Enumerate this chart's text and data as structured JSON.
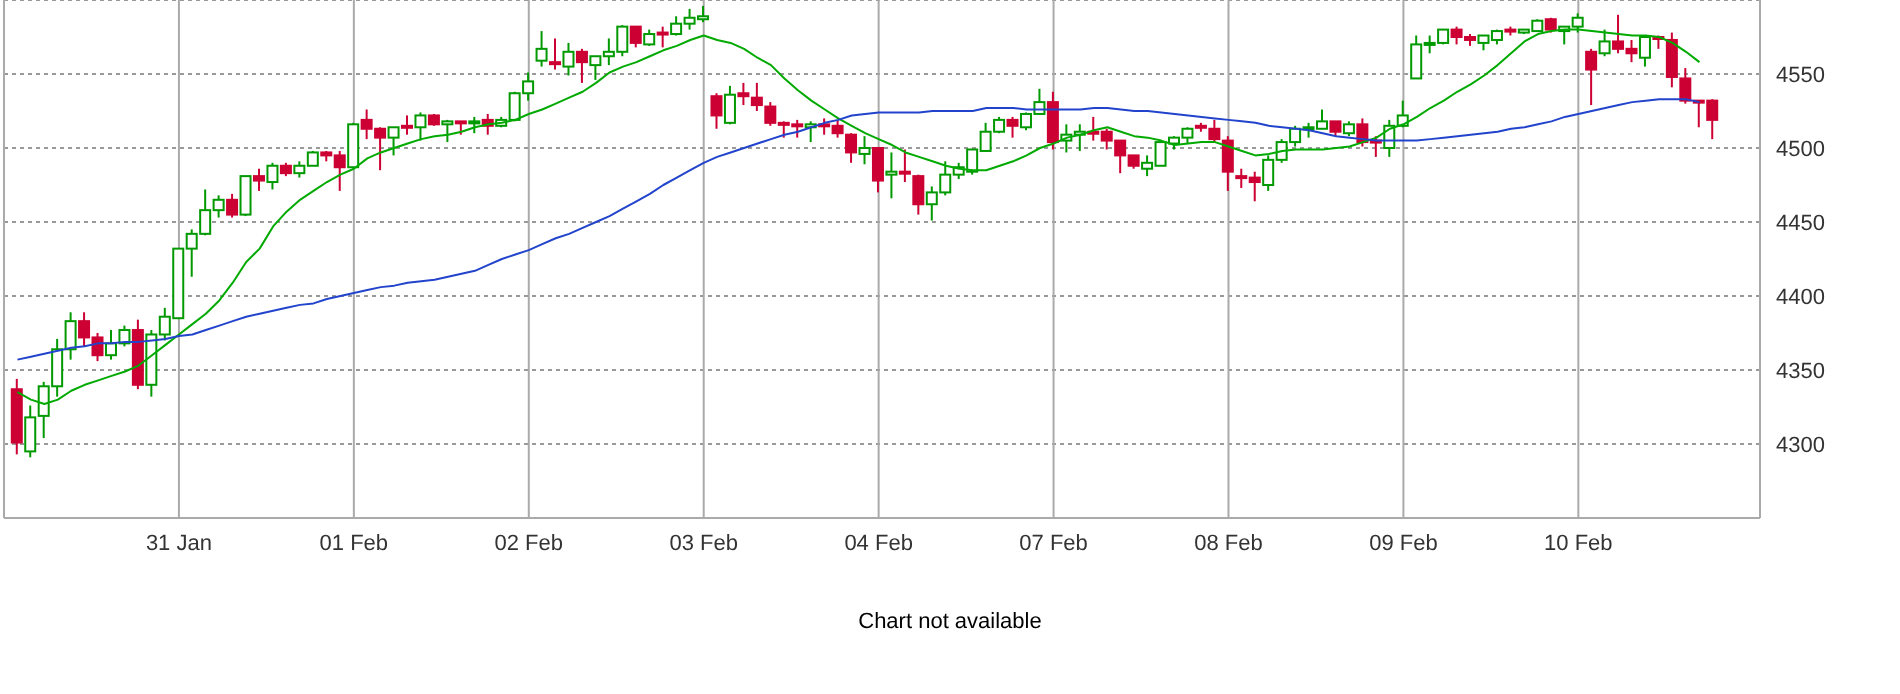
{
  "chart_data": {
    "type": "candlestick",
    "annotations": [
      "Chart not available"
    ],
    "categories": [
      null,
      null,
      null,
      null,
      null,
      null,
      null,
      null,
      null,
      null,
      null,
      null,
      "31 Jan",
      null,
      null,
      null,
      null,
      null,
      null,
      null,
      null,
      null,
      null,
      null,
      null,
      "01 Feb",
      null,
      null,
      null,
      null,
      null,
      null,
      null,
      null,
      null,
      null,
      null,
      null,
      "02 Feb",
      null,
      null,
      null,
      null,
      null,
      null,
      null,
      null,
      null,
      null,
      null,
      null,
      "03 Feb",
      null,
      null,
      null,
      null,
      null,
      null,
      null,
      null,
      null,
      null,
      null,
      null,
      "04 Feb",
      null,
      null,
      null,
      null,
      null,
      null,
      null,
      null,
      null,
      null,
      null,
      null,
      "07 Feb",
      null,
      null,
      null,
      null,
      null,
      null,
      null,
      null,
      null,
      null,
      null,
      null,
      "08 Feb",
      null,
      null,
      null,
      null,
      null,
      null,
      null,
      null,
      null,
      null,
      null,
      null,
      "09 Feb",
      null,
      null,
      null,
      null,
      null,
      null,
      null,
      null,
      null,
      null,
      null,
      null,
      "10 Feb",
      null,
      null,
      null,
      null,
      null,
      null,
      null,
      null,
      null,
      null
    ],
    "ohlc": [
      [
        4337,
        4344,
        4293,
        4301
      ],
      [
        4295,
        4326,
        4291,
        4318
      ],
      [
        4319,
        4342,
        4304,
        4339
      ],
      [
        4339,
        4371,
        4332,
        4364
      ],
      [
        4364,
        4389,
        4357,
        4383
      ],
      [
        4383,
        4389,
        4366,
        4372
      ],
      [
        4372,
        4375,
        4356,
        4360
      ],
      [
        4360,
        4377,
        4357,
        4368
      ],
      [
        4368,
        4380,
        4366,
        4377
      ],
      [
        4377,
        4384,
        4337,
        4340
      ],
      [
        4340,
        4377,
        4332,
        4374
      ],
      [
        4374,
        4392,
        4370,
        4386
      ],
      [
        4385,
        4432,
        4385,
        4432
      ],
      [
        4432,
        4445,
        4413,
        4442
      ],
      [
        4442,
        4472,
        4441,
        4458
      ],
      [
        4458,
        4468,
        4453,
        4465
      ],
      [
        4465,
        4469,
        4453,
        4455
      ],
      [
        4455,
        4481,
        4454,
        4481
      ],
      [
        4481,
        4486,
        4471,
        4478
      ],
      [
        4477,
        4490,
        4472,
        4488
      ],
      [
        4488,
        4490,
        4481,
        4483
      ],
      [
        4483,
        4491,
        4480,
        4488
      ],
      [
        4488,
        4498,
        4488,
        4497
      ],
      [
        4497,
        4498,
        4491,
        4495
      ],
      [
        4495,
        4498,
        4471,
        4487
      ],
      [
        4487,
        4517,
        4487,
        4516
      ],
      [
        4519,
        4526,
        4506,
        4513
      ],
      [
        4513,
        4514,
        4485,
        4507
      ],
      [
        4507,
        4514,
        4495,
        4514
      ],
      [
        4515,
        4522,
        4509,
        4514
      ],
      [
        4514,
        4524,
        4505,
        4522
      ],
      [
        4522,
        4523,
        4515,
        4516
      ],
      [
        4516,
        4519,
        4504,
        4518
      ],
      [
        4518,
        4518,
        4509,
        4517
      ],
      [
        4517,
        4521,
        4510,
        4518
      ],
      [
        4519,
        4523,
        4509,
        4515
      ],
      [
        4515,
        4521,
        4514,
        4519
      ],
      [
        4519,
        4538,
        4518,
        4537
      ],
      [
        4537,
        4551,
        4532,
        4545
      ],
      [
        4559,
        4579,
        4555,
        4567
      ],
      [
        4558,
        4574,
        4553,
        4557
      ],
      [
        4555,
        4571,
        4549,
        4565
      ],
      [
        4565,
        4567,
        4544,
        4558
      ],
      [
        4556,
        4562,
        4546,
        4562
      ],
      [
        4562,
        4574,
        4556,
        4565
      ],
      [
        4565,
        4583,
        4562,
        4582
      ],
      [
        4582,
        4582,
        4568,
        4571
      ],
      [
        4570,
        4580,
        4569,
        4577
      ],
      [
        4578,
        4582,
        4568,
        4577
      ],
      [
        4577,
        4589,
        4576,
        4584
      ],
      [
        4584,
        4594,
        4580,
        4588
      ],
      [
        4587,
        4596,
        4585,
        4589
      ],
      [
        4535,
        4537,
        4513,
        4522
      ],
      [
        4517,
        4542,
        4516,
        4536
      ],
      [
        4537,
        4544,
        4529,
        4535
      ],
      [
        4534,
        4544,
        4525,
        4529
      ],
      [
        4528,
        4531,
        4515,
        4517
      ],
      [
        4517,
        4518,
        4507,
        4516
      ],
      [
        4516,
        4519,
        4507,
        4515
      ],
      [
        4514,
        4518,
        4504,
        4516
      ],
      [
        4516,
        4520,
        4509,
        4515
      ],
      [
        4515,
        4519,
        4507,
        4510
      ],
      [
        4509,
        4510,
        4490,
        4497
      ],
      [
        4496,
        4508,
        4489,
        4500
      ],
      [
        4500,
        4500,
        4470,
        4478
      ],
      [
        4482,
        4497,
        4466,
        4484
      ],
      [
        4484,
        4499,
        4477,
        4483
      ],
      [
        4481,
        4482,
        4455,
        4462
      ],
      [
        4462,
        4474,
        4451,
        4470
      ],
      [
        4470,
        4491,
        4468,
        4482
      ],
      [
        4482,
        4490,
        4479,
        4487
      ],
      [
        4484,
        4499,
        4482,
        4499
      ],
      [
        4498,
        4517,
        4498,
        4511
      ],
      [
        4511,
        4521,
        4510,
        4519
      ],
      [
        4519,
        4521,
        4507,
        4515
      ],
      [
        4514,
        4524,
        4512,
        4523
      ],
      [
        4523,
        4540,
        4523,
        4531
      ],
      [
        4531,
        4538,
        4499,
        4504
      ],
      [
        4505,
        4516,
        4497,
        4509
      ],
      [
        4509,
        4516,
        4498,
        4511
      ],
      [
        4511,
        4521,
        4505,
        4510
      ],
      [
        4511,
        4513,
        4499,
        4505
      ],
      [
        4505,
        4505,
        4483,
        4495
      ],
      [
        4495,
        4495,
        4486,
        4488
      ],
      [
        4486,
        4495,
        4481,
        4490
      ],
      [
        4488,
        4505,
        4488,
        4504
      ],
      [
        4503,
        4508,
        4499,
        4507
      ],
      [
        4507,
        4514,
        4503,
        4513
      ],
      [
        4515,
        4517,
        4511,
        4514
      ],
      [
        4513,
        4519,
        4504,
        4506
      ],
      [
        4505,
        4508,
        4471,
        4484
      ],
      [
        4481,
        4486,
        4473,
        4480
      ],
      [
        4480,
        4484,
        4464,
        4477
      ],
      [
        4475,
        4495,
        4471,
        4492
      ],
      [
        4492,
        4506,
        4490,
        4504
      ],
      [
        4504,
        4515,
        4501,
        4513
      ],
      [
        4513,
        4517,
        4507,
        4514
      ],
      [
        4513,
        4526,
        4513,
        4518
      ],
      [
        4518,
        4518,
        4508,
        4511
      ],
      [
        4510,
        4518,
        4508,
        4516
      ],
      [
        4516,
        4520,
        4501,
        4504
      ],
      [
        4505,
        4508,
        4494,
        4504
      ],
      [
        4500,
        4519,
        4494,
        4515
      ],
      [
        4515,
        4532,
        4514,
        4522
      ],
      [
        4547,
        4576,
        4547,
        4570
      ],
      [
        4570,
        4576,
        4564,
        4571
      ],
      [
        4571,
        4580,
        4570,
        4580
      ],
      [
        4580,
        4582,
        4570,
        4575
      ],
      [
        4575,
        4577,
        4569,
        4573
      ],
      [
        4571,
        4576,
        4566,
        4576
      ],
      [
        4573,
        4580,
        4570,
        4579
      ],
      [
        4580,
        4582,
        4576,
        4579
      ],
      [
        4578,
        4580,
        4577,
        4580
      ],
      [
        4579,
        4587,
        4579,
        4586
      ],
      [
        4587,
        4588,
        4578,
        4580
      ],
      [
        4579,
        4582,
        4570,
        4582
      ],
      [
        4582,
        4591,
        4578,
        4588
      ],
      [
        4565,
        4567,
        4529,
        4553
      ],
      [
        4564,
        4580,
        4562,
        4572
      ],
      [
        4572,
        4590,
        4564,
        4567
      ],
      [
        4567,
        4573,
        4558,
        4564
      ],
      [
        4561,
        4576,
        4555,
        4575
      ],
      [
        4575,
        4576,
        4567,
        4574
      ],
      [
        4573,
        4578,
        4541,
        4548
      ],
      [
        4547,
        4554,
        4530,
        4532
      ],
      [
        4532,
        4532,
        4514,
        4531
      ],
      [
        4532,
        4533,
        4506,
        4519
      ]
    ],
    "series": [
      {
        "type": "line",
        "color": "#00aa00",
        "values": [
          4335,
          4330,
          4327,
          4330,
          4336,
          4340,
          4343,
          4346,
          4349,
          4353,
          4360,
          4367,
          4374,
          4381,
          4388,
          4397,
          4409,
          4423,
          4432,
          4447,
          4457,
          4465,
          4471,
          4477,
          4482,
          4486,
          4493,
          4497,
          4500,
          4503,
          4506,
          4508,
          4509,
          4511,
          4514,
          4516,
          4517,
          4519,
          4523,
          4526,
          4530,
          4534,
          4538,
          4544,
          4551,
          4555,
          4558,
          4562,
          4566,
          4569,
          4573,
          4576,
          4573,
          4571,
          4567,
          4561,
          4556,
          4547,
          4539,
          4532,
          4526,
          4520,
          4515,
          4510,
          4506,
          4502,
          4497,
          4494,
          4491,
          4488,
          4486,
          4485,
          4485,
          4488,
          4491,
          4495,
          4500,
          4503,
          4507,
          4509,
          4512,
          4514,
          4511,
          4508,
          4507,
          4505,
          4502,
          4503,
          4504,
          4504,
          4501,
          4498,
          4495,
          4496,
          4498,
          4499,
          4499,
          4499,
          4500,
          4501,
          4504,
          4507,
          4513,
          4516,
          4521,
          4527,
          4532,
          4538,
          4543,
          4549,
          4556,
          4564,
          4572,
          4577,
          4579,
          4580,
          4580,
          4579,
          4578,
          4577,
          4576,
          4576,
          4575,
          4571,
          4565,
          4558,
          null
        ]
      },
      {
        "type": "line",
        "color": "#2244cc",
        "values": [
          4357,
          4359,
          4361,
          4363,
          4365,
          4366,
          4368,
          4368,
          4369,
          4369,
          4370,
          4371,
          4373,
          4374,
          4377,
          4380,
          4383,
          4386,
          4388,
          4390,
          4392,
          4394,
          4395,
          4398,
          4400,
          4402,
          4404,
          4406,
          4407,
          4409,
          4410,
          4411,
          4413,
          4415,
          4417,
          4421,
          4425,
          4428,
          4431,
          4435,
          4439,
          4442,
          4446,
          4450,
          4454,
          4459,
          4464,
          4469,
          4475,
          4480,
          4485,
          4490,
          4494,
          4497,
          4500,
          4503,
          4506,
          4509,
          4511,
          4514,
          4517,
          4519,
          4522,
          4523,
          4524,
          4524,
          4524,
          4524,
          4525,
          4525,
          4525,
          4525,
          4527,
          4527,
          4527,
          4526,
          4526,
          4526,
          4526,
          4526,
          4527,
          4527,
          4526,
          4525,
          4525,
          4524,
          4523,
          4522,
          4521,
          4520,
          4519,
          4518,
          4517,
          4515,
          4514,
          4513,
          4512,
          4510,
          4508,
          4507,
          4506,
          4505,
          4505,
          4505,
          4505,
          4506,
          4507,
          4508,
          4509,
          4510,
          4511,
          4513,
          4514,
          4516,
          4518,
          4521,
          4523,
          4525,
          4527,
          4529,
          4531,
          4532,
          4533,
          4533,
          4533,
          4531,
          null
        ]
      }
    ],
    "ylim": [
      4250,
      4600
    ],
    "yticks": [
      4300,
      4350,
      4400,
      4450,
      4500,
      4550
    ],
    "grid": true,
    "legend": false
  }
}
